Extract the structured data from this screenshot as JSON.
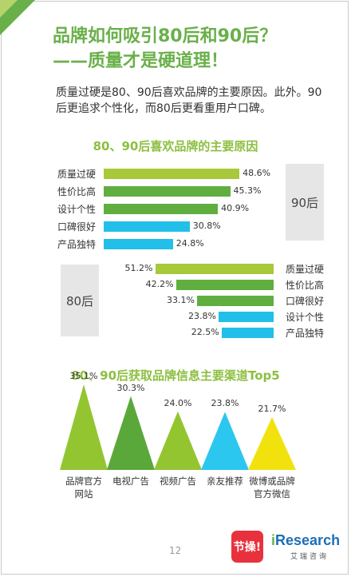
{
  "title_line1": "品牌如何吸引80后和90后？",
  "title_line2": "——质量才是硬道理！",
  "intro": "质量过硬是80、90后喜欢品牌的主要原因。此外。90后更追求个性化，而80后更看重用户口碑。",
  "colors": {
    "title_green": "#6ab04a",
    "section_green": "#8cbf3f",
    "bar_lime": "#a7c93a",
    "bar_green": "#5fae3f",
    "bar_cyan": "#22bfe8",
    "tri_lime": "#93c531",
    "tri_green": "#5aa83a",
    "tri_cyan": "#2cc7ee",
    "tri_yellow": "#f1e20e"
  },
  "chart_data": [
    {
      "type": "bar",
      "title": "80、90后喜欢品牌的主要原因",
      "group_label": "90后",
      "categories": [
        "质量过硬",
        "性价比高",
        "设计个性",
        "口碑很好",
        "产品独特"
      ],
      "values": [
        48.6,
        45.3,
        40.9,
        30.8,
        24.8
      ],
      "value_labels": [
        "48.6%",
        "45.3%",
        "40.9%",
        "30.8%",
        "24.8%"
      ],
      "bar_colors": [
        "#a7c93a",
        "#5fae3f",
        "#5fae3f",
        "#22bfe8",
        "#22bfe8"
      ],
      "orientation": "horizontal",
      "unit": "%"
    },
    {
      "type": "bar",
      "group_label": "80后",
      "categories": [
        "质量过硬",
        "性价比高",
        "口碑很好",
        "设计个性",
        "产品独特"
      ],
      "values": [
        51.2,
        42.2,
        33.1,
        23.8,
        22.5
      ],
      "value_labels": [
        "51.2%",
        "42.2%",
        "33.1%",
        "23.8%",
        "22.5%"
      ],
      "bar_colors": [
        "#a7c93a",
        "#5fae3f",
        "#5fae3f",
        "#22bfe8",
        "#22bfe8"
      ],
      "orientation": "horizontal",
      "direction": "right-to-left",
      "unit": "%"
    },
    {
      "type": "bar",
      "title": "80、90后获取品牌信息主要渠道Top5",
      "mark": "triangle",
      "categories": [
        "品牌官方网站",
        "电视广告",
        "视频广告",
        "亲友推荐",
        "微博或品牌官方微信"
      ],
      "category_lines": [
        [
          "品牌官方",
          "网站"
        ],
        [
          "电视广告"
        ],
        [
          "视频广告"
        ],
        [
          "亲友推荐"
        ],
        [
          "微博或品牌",
          "官方微信"
        ]
      ],
      "values": [
        35.1,
        30.3,
        24.0,
        23.8,
        21.7
      ],
      "value_labels": [
        "35.1%",
        "30.3%",
        "24.0%",
        "23.8%",
        "21.7%"
      ],
      "bar_colors": [
        "#93c531",
        "#5aa83a",
        "#93c531",
        "#2cc7ee",
        "#f1e20e"
      ],
      "unit": "%"
    }
  ],
  "page_number": "12",
  "logo_jiecao": "节操!",
  "logo_iresearch_i": "i",
  "logo_iresearch_rest": "Research",
  "logo_iresearch_cn": "艾瑞咨询"
}
